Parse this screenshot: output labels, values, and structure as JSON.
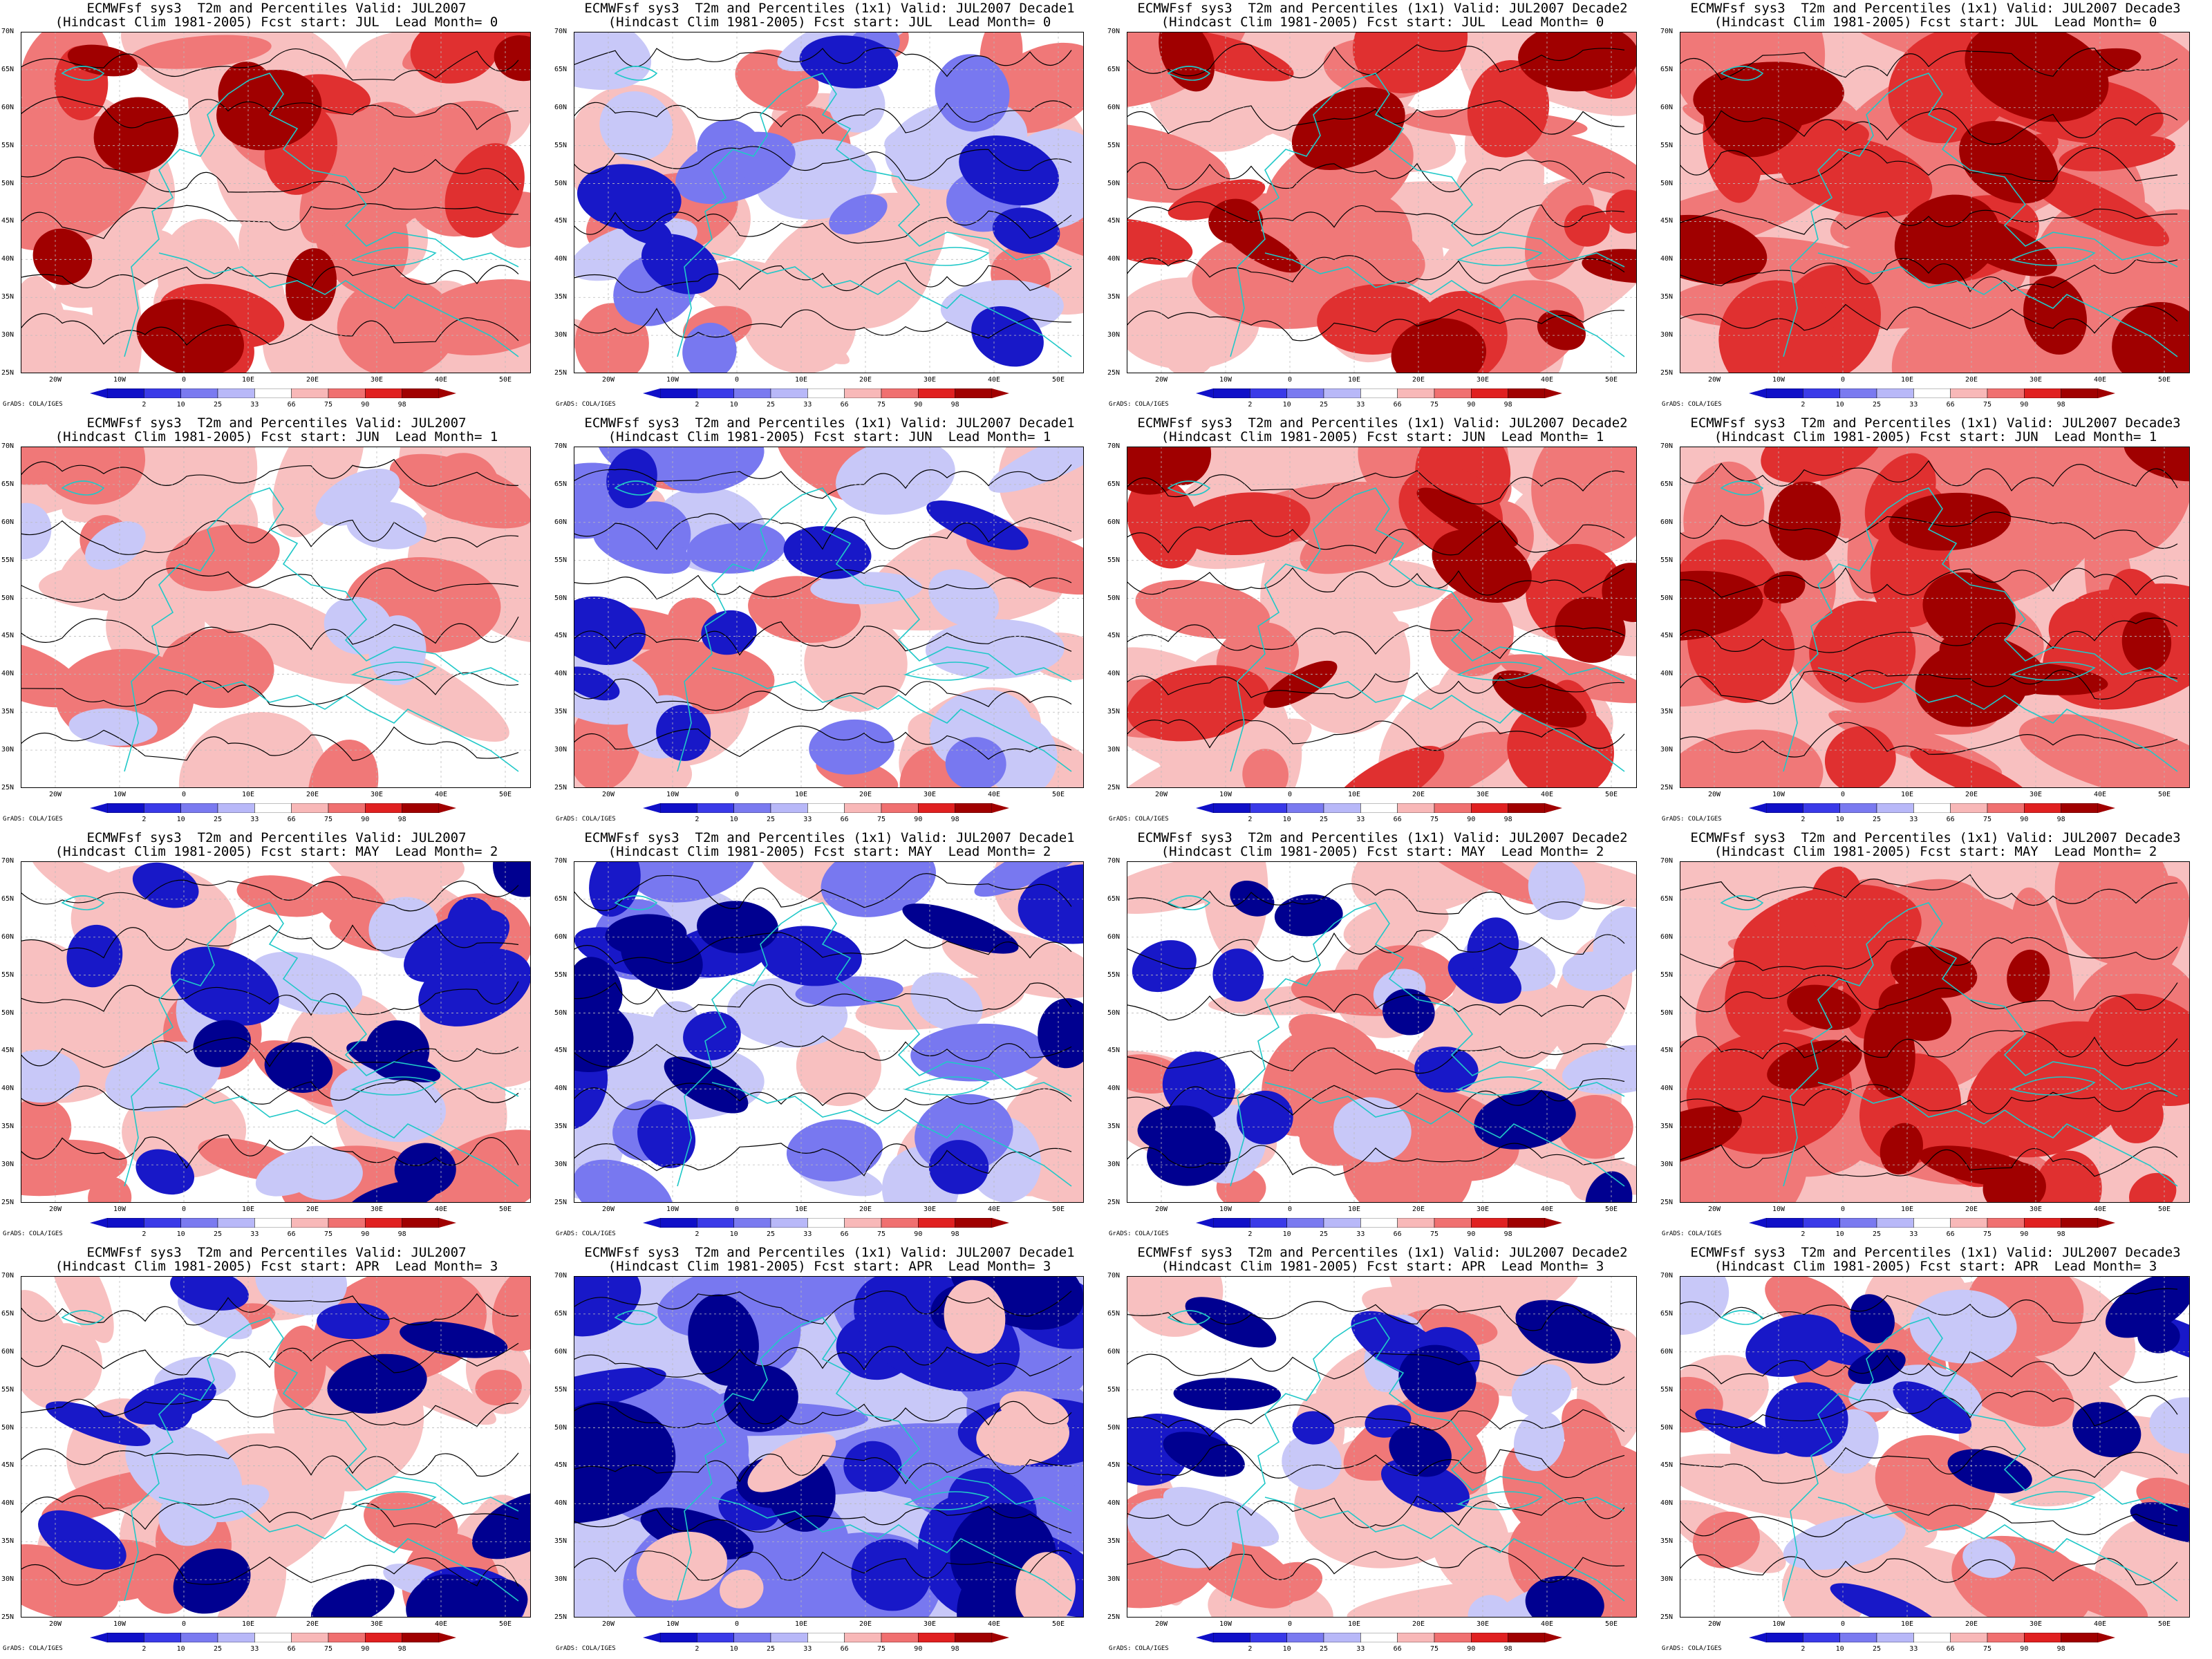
{
  "panels": [
    {
      "title1": "ECMWFsf sys3  T2m and Percentiles Valid: JUL2007",
      "title2": "(Hindcast Clim 1981-2005) Fcst start: JUL  Lead Month= 0",
      "anomaly": "warm"
    },
    {
      "title1": "ECMWFsf sys3  T2m and Percentiles (1x1) Valid: JUL2007 Decade1",
      "title2": "(Hindcast Clim 1981-2005) Fcst start: JUL  Lead Month= 0",
      "anomaly": "mixed-cold-west"
    },
    {
      "title1": "ECMWFsf sys3  T2m and Percentiles (1x1) Valid: JUL2007 Decade2",
      "title2": "(Hindcast Clim 1981-2005) Fcst start: JUL  Lead Month= 0",
      "anomaly": "warm"
    },
    {
      "title1": "ECMWFsf sys3  T2m and Percentiles (1x1) Valid: JUL2007 Decade3",
      "title2": "(Hindcast Clim 1981-2005) Fcst start: JUL  Lead Month= 0",
      "anomaly": "very-warm"
    },
    {
      "title1": "ECMWFsf sys3  T2m and Percentiles Valid: JUL2007",
      "title2": "(Hindcast Clim 1981-2005) Fcst start: JUN  Lead Month= 1",
      "anomaly": "mild-warm"
    },
    {
      "title1": "ECMWFsf sys3  T2m and Percentiles (1x1) Valid: JUL2007 Decade1",
      "title2": "(Hindcast Clim 1981-2005) Fcst start: JUN  Lead Month= 1",
      "anomaly": "mixed-cold-west"
    },
    {
      "title1": "ECMWFsf sys3  T2m and Percentiles (1x1) Valid: JUL2007 Decade2",
      "title2": "(Hindcast Clim 1981-2005) Fcst start: JUN  Lead Month= 1",
      "anomaly": "warm"
    },
    {
      "title1": "ECMWFsf sys3  T2m and Percentiles (1x1) Valid: JUL2007 Decade3",
      "title2": "(Hindcast Clim 1981-2005) Fcst start: JUN  Lead Month= 1",
      "anomaly": "very-warm"
    },
    {
      "title1": "ECMWFsf sys3  T2m and Percentiles Valid: JUL2007",
      "title2": "(Hindcast Clim 1981-2005) Fcst start: MAY  Lead Month= 2",
      "anomaly": "warm-cold-seas"
    },
    {
      "title1": "ECMWFsf sys3  T2m and Percentiles (1x1) Valid: JUL2007 Decade1",
      "title2": "(Hindcast Clim 1981-2005) Fcst start: MAY  Lead Month= 2",
      "anomaly": "cold-seas"
    },
    {
      "title1": "ECMWFsf sys3  T2m and Percentiles (1x1) Valid: JUL2007 Decade2",
      "title2": "(Hindcast Clim 1981-2005) Fcst start: MAY  Lead Month= 2",
      "anomaly": "warm-cold-seas"
    },
    {
      "title1": "ECMWFsf sys3  T2m and Percentiles (1x1) Valid: JUL2007 Decade3",
      "title2": "(Hindcast Clim 1981-2005) Fcst start: MAY  Lead Month= 2",
      "anomaly": "very-warm"
    },
    {
      "title1": "ECMWFsf sys3  T2m and Percentiles Valid: JUL2007",
      "title2": "(Hindcast Clim 1981-2005) Fcst start: APR  Lead Month= 3",
      "anomaly": "warm-cold-seas"
    },
    {
      "title1": "ECMWFsf sys3  T2m and Percentiles (1x1) Valid: JUL2007 Decade1",
      "title2": "(Hindcast Clim 1981-2005) Fcst start: APR  Lead Month= 3",
      "anomaly": "very-cold"
    },
    {
      "title1": "ECMWFsf sys3  T2m and Percentiles (1x1) Valid: JUL2007 Decade2",
      "title2": "(Hindcast Clim 1981-2005) Fcst start: APR  Lead Month= 3",
      "anomaly": "warm-cold-seas"
    },
    {
      "title1": "ECMWFsf sys3  T2m and Percentiles (1x1) Valid: JUL2007 Decade3",
      "title2": "(Hindcast Clim 1981-2005) Fcst start: APR  Lead Month= 3",
      "anomaly": "warm-cold-seas"
    }
  ],
  "lat_labels": [
    "70N",
    "65N",
    "60N",
    "55N",
    "50N",
    "45N",
    "40N",
    "35N",
    "30N",
    "25N"
  ],
  "lon_labels": [
    "20W",
    "10W",
    "0",
    "10E",
    "20E",
    "30E",
    "40E",
    "50E"
  ],
  "colorbar": {
    "ticks": [
      "2",
      "10",
      "25",
      "33",
      "66",
      "75",
      "90",
      "98"
    ],
    "colors": [
      "#1010c8",
      "#3a3ae8",
      "#7a7af0",
      "#b8b8f8",
      "#ffffff",
      "#f8b8b8",
      "#f07070",
      "#e02020",
      "#a00000"
    ]
  },
  "credit": "GrADS: COLA/IGES",
  "colors": {
    "coast": "#20c8c8",
    "contour": "#000000",
    "warm_light": "#f8c0c0",
    "warm_mid": "#f07878",
    "warm_strong": "#e03030",
    "warm_max": "#a00000",
    "cold_light": "#c8c8f8",
    "cold_mid": "#7878f0",
    "cold_strong": "#1818c8",
    "cold_max": "#000090"
  }
}
